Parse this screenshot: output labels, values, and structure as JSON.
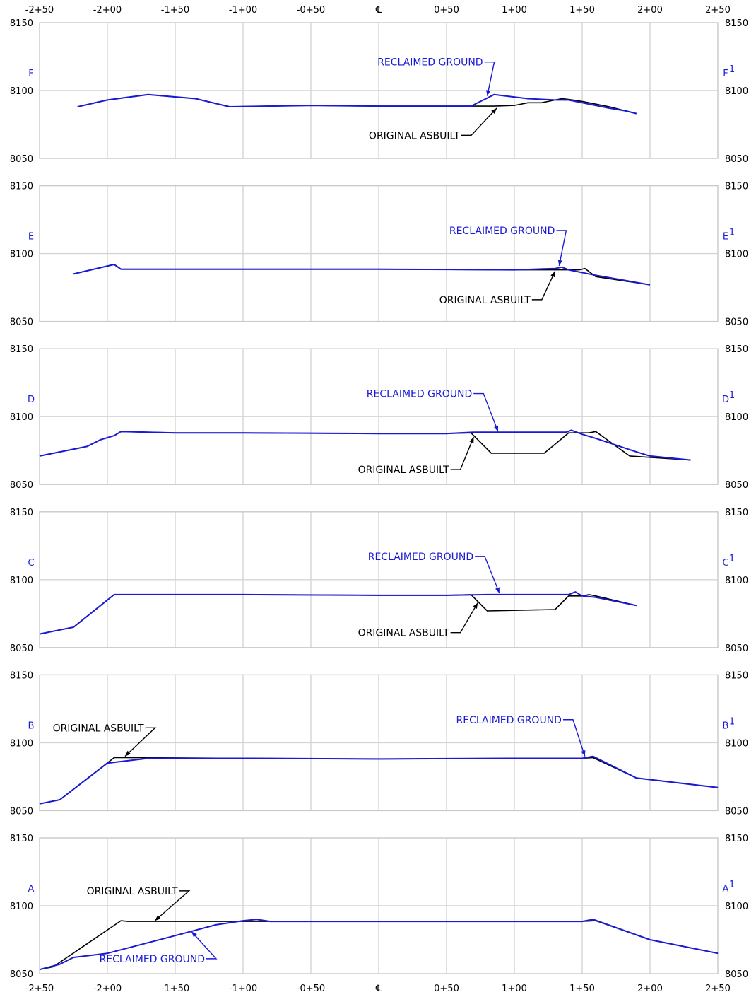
{
  "chart_data": {
    "type": "line",
    "x_ticks": [
      "-2+50",
      "-2+00",
      "-1+50",
      "-1+00",
      "-0+50",
      "℄",
      "0+50",
      "1+00",
      "1+50",
      "2+00",
      "2+50"
    ],
    "xlim": [
      -250,
      250
    ],
    "ylim": [
      8050,
      8150
    ],
    "y_ticks": [
      "8150",
      "8100",
      "8050"
    ],
    "grid": true,
    "colors": {
      "reclaimed": "#1a1ad6",
      "asbuilt": "#000000",
      "grid": "#d4d4d4"
    },
    "panels": [
      {
        "id": "F",
        "left_label": "F",
        "right_label": "F",
        "right_sup": "1",
        "annotations": [
          {
            "text": "RECLAIMED GROUND",
            "series": "reclaimed",
            "text_x": 80,
            "text_y": 8121,
            "arrow_to": [
              80,
              8096
            ]
          },
          {
            "text": "ORIGINAL ASBUILT",
            "series": "asbuilt",
            "text_x": 63,
            "text_y": 8067,
            "arrow_to": [
              87,
              8087
            ]
          }
        ],
        "series": [
          {
            "name": "ORIGINAL ASBUILT",
            "key": "asbuilt",
            "x": [
              -222,
              -200,
              -170,
              -135,
              -110,
              -50,
              0,
              50,
              68,
              85,
              100,
              110,
              120,
              130,
              135,
              140,
              150,
              160,
              170,
              182,
              190
            ],
            "y": [
              8088,
              8093,
              8097,
              8094,
              8088,
              8089,
              8088.5,
              8088.5,
              8088.5,
              8088.5,
              8089,
              8091,
              8091,
              8093,
              8094,
              8093.5,
              8092,
              8090,
              8088,
              8085,
              8083
            ]
          },
          {
            "name": "RECLAIMED GROUND",
            "key": "reclaimed",
            "x": [
              -222,
              -200,
              -170,
              -135,
              -110,
              -50,
              0,
              50,
              68,
              85,
              110,
              130,
              140,
              150,
              160,
              170,
              182,
              190
            ],
            "y": [
              8088,
              8093,
              8097,
              8094,
              8088,
              8089,
              8088.5,
              8088.5,
              8088.5,
              8097,
              8094,
              8093,
              8093,
              8091,
              8089,
              8087,
              8085,
              8083
            ]
          }
        ]
      },
      {
        "id": "E",
        "left_label": "E",
        "right_label": "E",
        "right_sup": "1",
        "annotations": [
          {
            "text": "RECLAIMED GROUND",
            "series": "reclaimed",
            "text_x": 133,
            "text_y": 8117,
            "arrow_to": [
              133,
              8091
            ]
          },
          {
            "text": "ORIGINAL ASBUILT",
            "series": "asbuilt",
            "text_x": 115,
            "text_y": 8066,
            "arrow_to": [
              130,
              8087
            ]
          }
        ],
        "series": [
          {
            "name": "ORIGINAL ASBUILT",
            "key": "asbuilt",
            "x": [
              -225,
              -195,
              -190,
              -100,
              0,
              100,
              140,
              148,
              152,
              160,
              200
            ],
            "y": [
              8085,
              8092,
              8088.5,
              8088.5,
              8088.5,
              8088,
              8088,
              8088,
              8089,
              8083,
              8077
            ]
          },
          {
            "name": "RECLAIMED GROUND",
            "key": "reclaimed",
            "x": [
              -225,
              -195,
              -190,
              -100,
              0,
              100,
              130,
              135,
              140,
              160,
              200
            ],
            "y": [
              8085,
              8092,
              8088.5,
              8088.5,
              8088.5,
              8088,
              8089,
              8090,
              8088,
              8084,
              8077
            ]
          }
        ]
      },
      {
        "id": "D",
        "left_label": "D",
        "right_label": "D",
        "right_sup": "1",
        "annotations": [
          {
            "text": "RECLAIMED GROUND",
            "series": "reclaimed",
            "text_x": 72,
            "text_y": 8117,
            "arrow_to": [
              88,
              8089
            ]
          },
          {
            "text": "ORIGINAL ASBUILT",
            "series": "asbuilt",
            "text_x": 55,
            "text_y": 8061,
            "arrow_to": [
              70,
              8085
            ]
          }
        ],
        "series": [
          {
            "name": "ORIGINAL ASBUILT",
            "key": "asbuilt",
            "x": [
              -250,
              -215,
              -205,
              -195,
              -190,
              -150,
              -100,
              0,
              50,
              68,
              83,
              122,
              140,
              155,
              160,
              185,
              200,
              230
            ],
            "y": [
              8071,
              8078,
              8083,
              8086,
              8089,
              8088,
              8088,
              8087.5,
              8087.5,
              8088,
              8073,
              8073,
              8088,
              8088,
              8089,
              8071,
              8070,
              8068
            ]
          },
          {
            "name": "RECLAIMED GROUND",
            "key": "reclaimed",
            "x": [
              -250,
              -215,
              -205,
              -195,
              -190,
              -150,
              -100,
              0,
              50,
              70,
              100,
              138,
              142,
              150,
              160,
              190,
              200,
              230
            ],
            "y": [
              8071,
              8078,
              8083,
              8086,
              8089,
              8088,
              8088,
              8087.5,
              8087.5,
              8088.5,
              8088.5,
              8088.5,
              8090,
              8087,
              8084,
              8074,
              8071,
              8068
            ]
          }
        ]
      },
      {
        "id": "C",
        "left_label": "C",
        "right_label": "C",
        "right_sup": "1",
        "annotations": [
          {
            "text": "RECLAIMED GROUND",
            "series": "reclaimed",
            "text_x": 73,
            "text_y": 8117,
            "arrow_to": [
              89,
              8090
            ]
          },
          {
            "text": "ORIGINAL ASBUILT",
            "series": "asbuilt",
            "text_x": 55,
            "text_y": 8061,
            "arrow_to": [
              73,
              8083
            ]
          }
        ],
        "series": [
          {
            "name": "ORIGINAL ASBUILT",
            "key": "asbuilt",
            "x": [
              -250,
              -235,
              -225,
              -195,
              -190,
              -100,
              0,
              50,
              68,
              80,
              130,
              140,
              150,
              155,
              160,
              190
            ],
            "y": [
              8060,
              8063,
              8065,
              8089,
              8089,
              8089,
              8088.5,
              8088.5,
              8089,
              8077,
              8078,
              8088,
              8088,
              8089,
              8088,
              8081
            ]
          },
          {
            "name": "RECLAIMED GROUND",
            "key": "reclaimed",
            "x": [
              -250,
              -235,
              -225,
              -195,
              -190,
              -100,
              0,
              50,
              80,
              140,
              145,
              150,
              160,
              190
            ],
            "y": [
              8060,
              8063,
              8065,
              8089,
              8089,
              8089,
              8088.5,
              8088.5,
              8089,
              8089,
              8091,
              8088,
              8087,
              8081
            ]
          }
        ]
      },
      {
        "id": "B",
        "left_label": "B",
        "right_label": "B",
        "right_sup": "1",
        "annotations": [
          {
            "text": "ORIGINAL ASBUILT",
            "series": "asbuilt",
            "text_x": -170,
            "text_y": 8111,
            "arrow_to": [
              -187,
              8090
            ]
          },
          {
            "text": "RECLAIMED GROUND",
            "series": "reclaimed",
            "text_x": 138,
            "text_y": 8117,
            "arrow_to": [
              152,
              8090
            ]
          }
        ],
        "series": [
          {
            "name": "ORIGINAL ASBUILT",
            "key": "asbuilt",
            "x": [
              -250,
              -235,
              -195,
              -190,
              -100,
              0,
              100,
              150,
              158,
              190,
              250
            ],
            "y": [
              8055,
              8058,
              8089,
              8089,
              8088.5,
              8088,
              8088.5,
              8088.5,
              8089,
              8074,
              8067
            ]
          },
          {
            "name": "RECLAIMED GROUND",
            "key": "reclaimed",
            "x": [
              -250,
              -235,
              -200,
              -170,
              -100,
              0,
              100,
              150,
              158,
              190,
              250
            ],
            "y": [
              8055,
              8058,
              8085,
              8088.5,
              8088.5,
              8088,
              8088.5,
              8088.5,
              8090,
              8074,
              8067
            ]
          }
        ]
      },
      {
        "id": "A",
        "left_label": "A",
        "right_label": "A",
        "right_sup": "1",
        "annotations": [
          {
            "text": "ORIGINAL ASBUILT",
            "series": "asbuilt",
            "text_x": -145,
            "text_y": 8111,
            "arrow_to": [
              -165,
              8089
            ]
          },
          {
            "text": "RECLAIMED GROUND",
            "series": "reclaimed",
            "text_x": -125,
            "text_y": 8061,
            "arrow_to": [
              -138,
              8081
            ]
          }
        ],
        "series": [
          {
            "name": "ORIGINAL ASBUILT",
            "key": "asbuilt",
            "x": [
              -250,
              -240,
              -190,
              -185,
              -100,
              0,
              100,
              150,
              160,
              200,
              250
            ],
            "y": [
              8053,
              8055,
              8089,
              8088.5,
              8088.5,
              8088.5,
              8088.5,
              8088.5,
              8089,
              8075,
              8065
            ]
          },
          {
            "name": "RECLAIMED GROUND",
            "key": "reclaimed",
            "x": [
              -250,
              -235,
              -225,
              -200,
              -150,
              -120,
              -100,
              -90,
              -80,
              0,
              50,
              100,
              150,
              158,
              200,
              250
            ],
            "y": [
              8053,
              8057,
              8062,
              8065,
              8078,
              8086,
              8089,
              8090,
              8088.5,
              8088.5,
              8088.5,
              8088.5,
              8088.5,
              8090,
              8075,
              8065
            ]
          }
        ]
      }
    ]
  }
}
